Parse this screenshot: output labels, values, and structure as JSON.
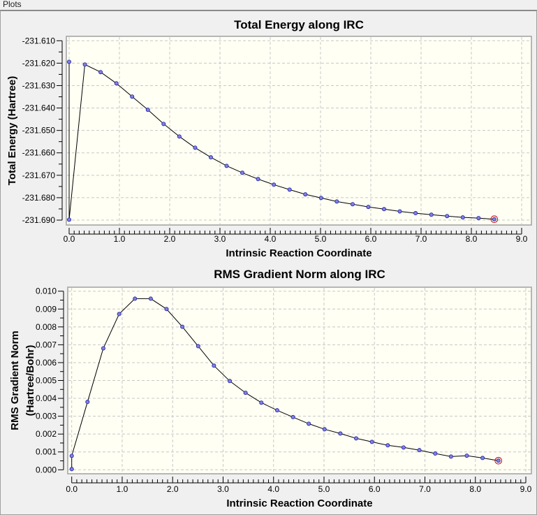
{
  "window": {
    "caption": "Plots"
  },
  "colors": {
    "plot_bg": "#fffff4",
    "grid": "#c8c8c8",
    "line": "#000000",
    "marker_fill": "#8080e0",
    "marker_stroke": "#2020a0",
    "highlight": "#cc0000"
  },
  "chart_data": [
    {
      "type": "line",
      "title": "Total Energy along IRC",
      "xlabel": "Intrinsic Reaction Coordinate",
      "ylabel": "Total Energy (Hartree)",
      "xlim": [
        0,
        9
      ],
      "ylim": [
        -231.69,
        -231.61
      ],
      "xticks": [
        "0.0",
        "1.0",
        "2.0",
        "3.0",
        "4.0",
        "5.0",
        "6.0",
        "7.0",
        "8.0",
        "9.0"
      ],
      "yticks": [
        "-231.610",
        "-231.620",
        "-231.630",
        "-231.640",
        "-231.650",
        "-231.660",
        "-231.670",
        "-231.680",
        "-231.690"
      ],
      "grid": true,
      "markers": true,
      "highlighted_point": "last",
      "x": [
        0.0,
        0.0,
        0.313,
        0.626,
        0.94,
        1.253,
        1.566,
        1.879,
        2.192,
        2.506,
        2.819,
        3.132,
        3.445,
        3.758,
        4.072,
        4.385,
        4.698,
        5.011,
        5.324,
        5.638,
        5.951,
        6.264,
        6.577,
        6.89,
        7.204,
        7.517,
        7.83,
        8.143,
        8.456
      ],
      "y": [
        -231.6194,
        -231.6898,
        -231.6206,
        -231.624,
        -231.629,
        -231.6349,
        -231.6408,
        -231.6471,
        -231.6527,
        -231.6577,
        -231.662,
        -231.6658,
        -231.6689,
        -231.6717,
        -231.6742,
        -231.6764,
        -231.6785,
        -231.6801,
        -231.6817,
        -231.6829,
        -231.6841,
        -231.6851,
        -231.6861,
        -231.6869,
        -231.6876,
        -231.6882,
        -231.6888,
        -231.6891,
        -231.6896
      ]
    },
    {
      "type": "line",
      "title": "RMS Gradient Norm along IRC",
      "xlabel": "Intrinsic Reaction Coordinate",
      "ylabel": [
        "RMS Gradient Norm",
        "(Hartree/Bohr)"
      ],
      "xlim": [
        0,
        9
      ],
      "ylim": [
        0,
        0.01
      ],
      "xticks": [
        "0.0",
        "1.0",
        "2.0",
        "3.0",
        "4.0",
        "5.0",
        "6.0",
        "7.0",
        "8.0",
        "9.0"
      ],
      "yticks": [
        "0.010",
        "0.009",
        "0.008",
        "0.007",
        "0.006",
        "0.005",
        "0.004",
        "0.003",
        "0.002",
        "0.001",
        "0.000"
      ],
      "grid": true,
      "markers": true,
      "highlighted_point": "last",
      "x": [
        0.0,
        0.0,
        0.313,
        0.626,
        0.94,
        1.253,
        1.566,
        1.879,
        2.192,
        2.506,
        2.819,
        3.132,
        3.445,
        3.758,
        4.072,
        4.385,
        4.698,
        5.011,
        5.324,
        5.638,
        5.951,
        6.264,
        6.577,
        6.89,
        7.204,
        7.517,
        7.83,
        8.143,
        8.456
      ],
      "y": [
        4e-05,
        0.00078,
        0.0038,
        0.0068,
        0.00872,
        0.00958,
        0.00958,
        0.009,
        0.00801,
        0.00692,
        0.00583,
        0.00497,
        0.00431,
        0.00376,
        0.00333,
        0.00295,
        0.00258,
        0.00227,
        0.00203,
        0.00176,
        0.00156,
        0.00137,
        0.00125,
        0.0011,
        0.00091,
        0.00074,
        0.00079,
        0.00066,
        0.00051
      ]
    }
  ]
}
